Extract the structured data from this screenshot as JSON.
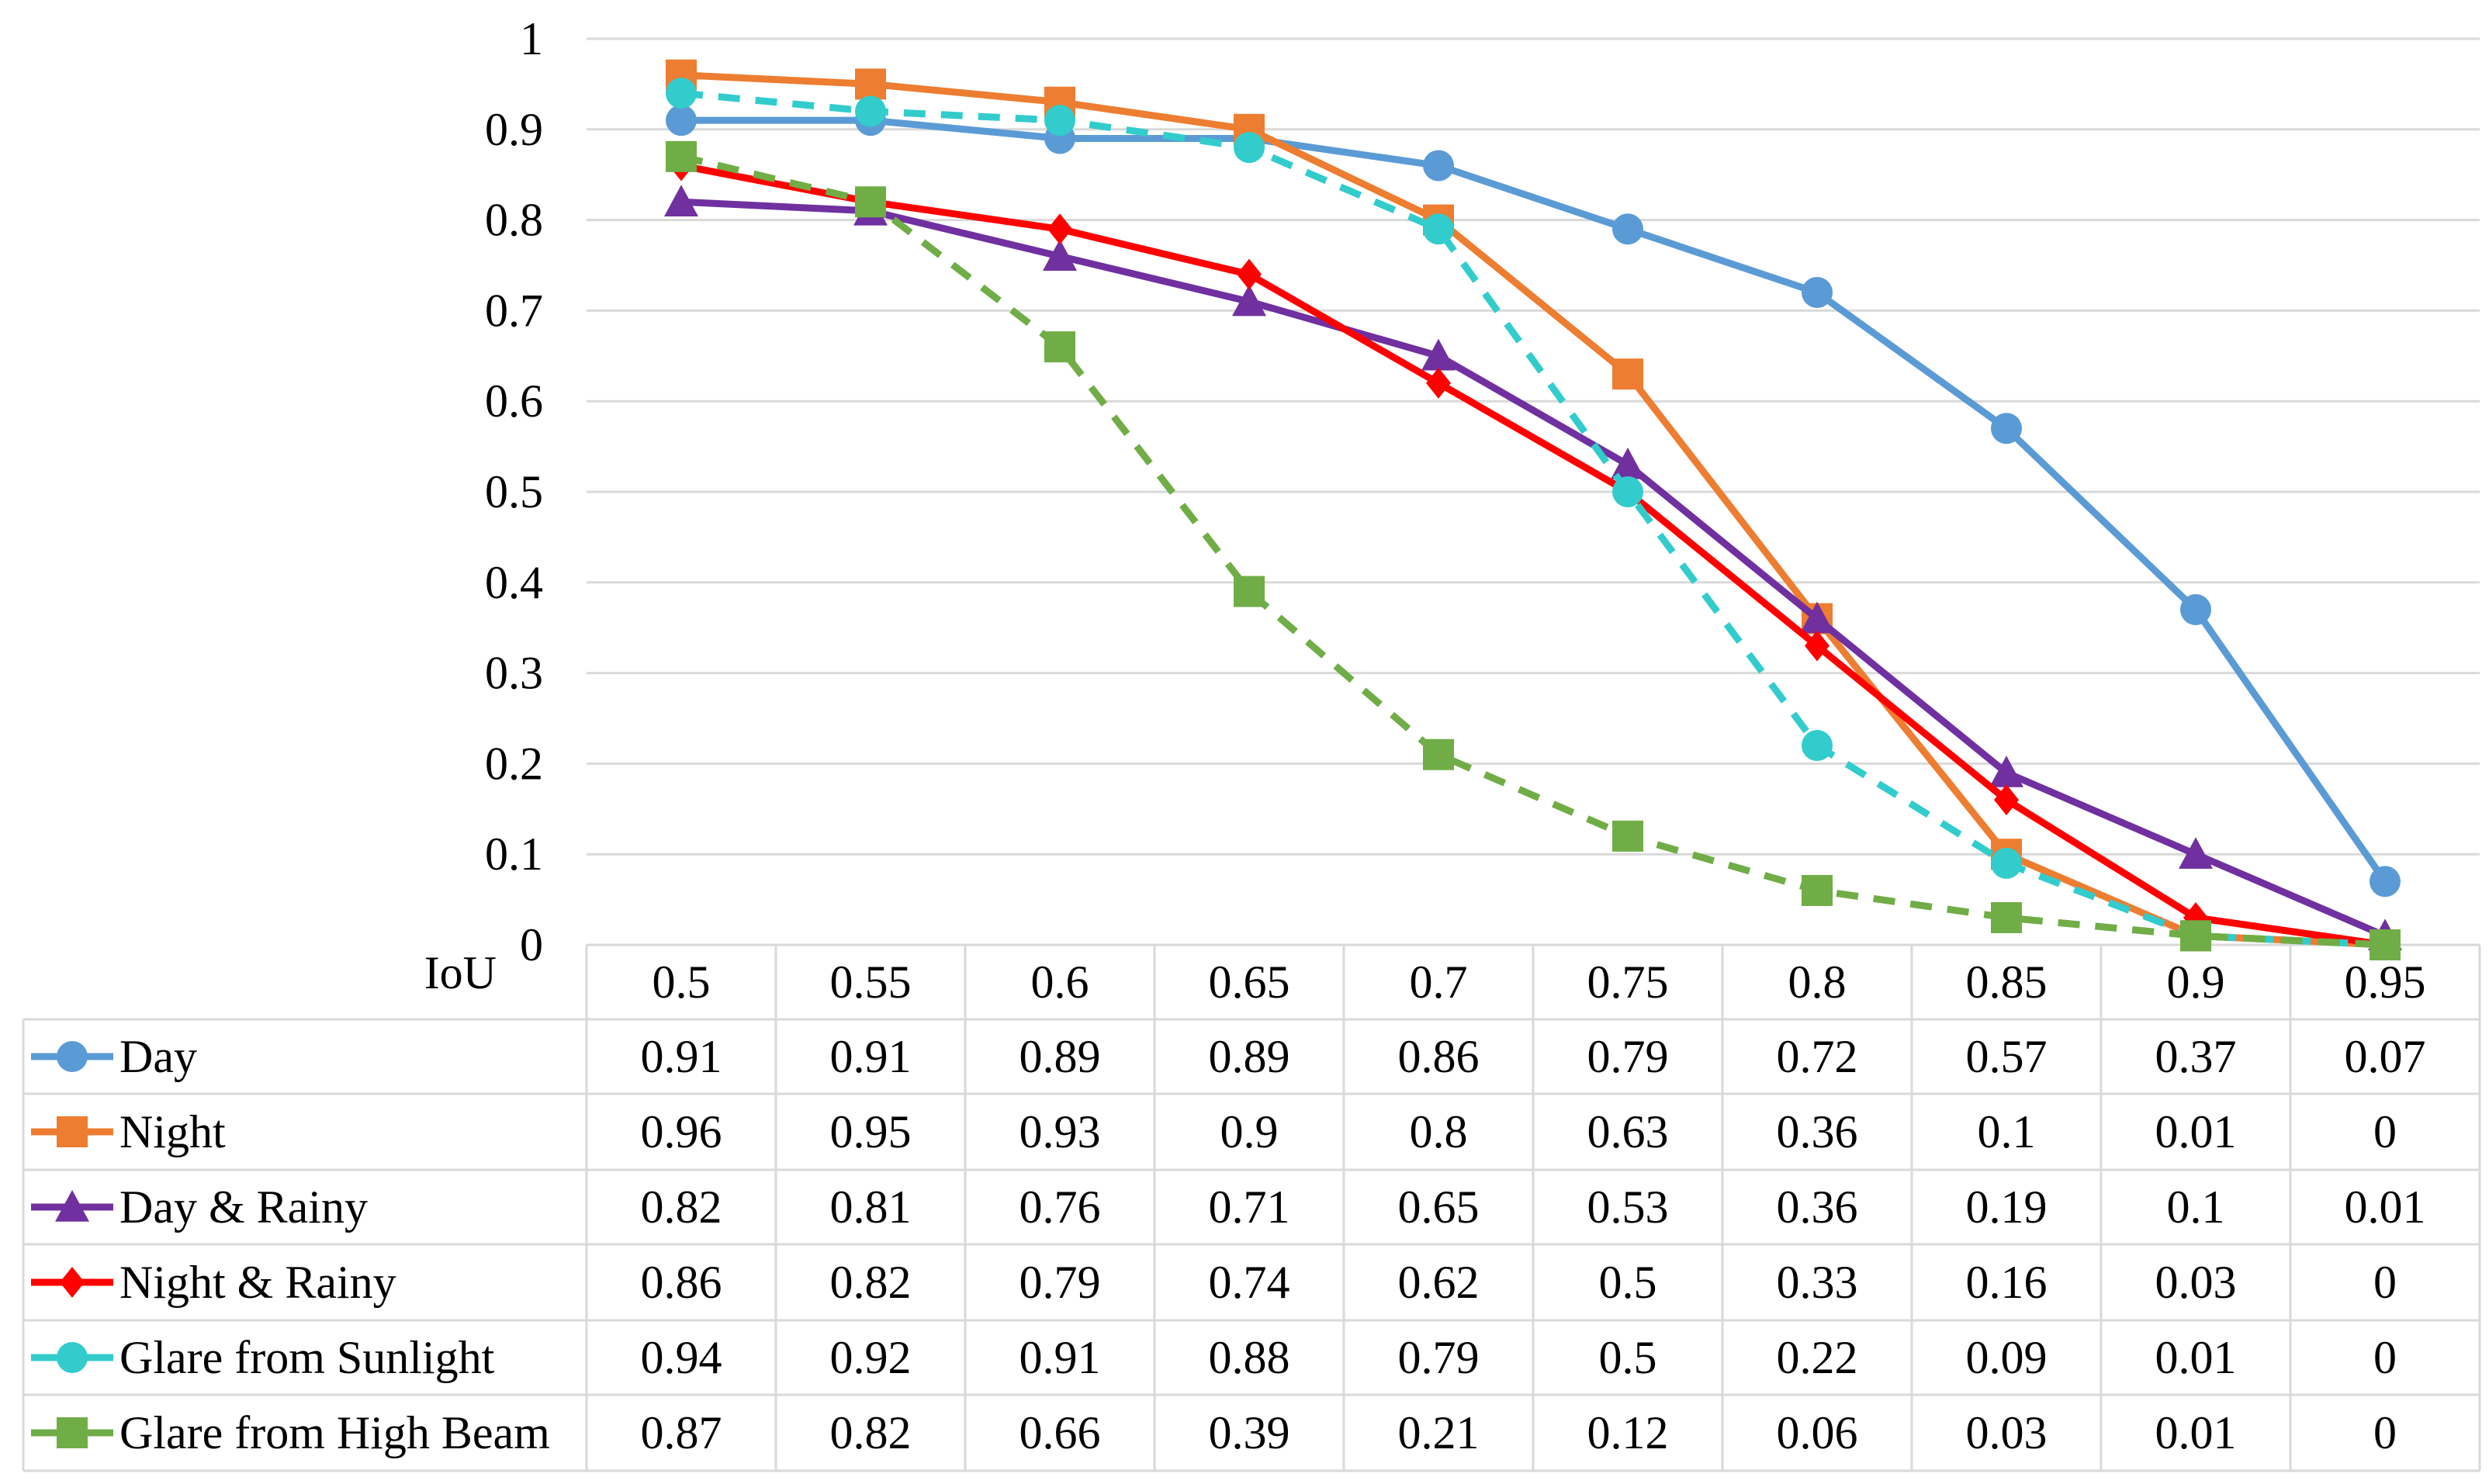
{
  "chart_data": {
    "type": "line",
    "title": "",
    "xlabel": "IoU",
    "ylabel": "",
    "x": [
      "0.5",
      "0.55",
      "0.6",
      "0.65",
      "0.7",
      "0.75",
      "0.8",
      "0.85",
      "0.9",
      "0.95"
    ],
    "ylim": [
      0,
      1
    ],
    "yticks": [
      "0",
      "0.1",
      "0.2",
      "0.3",
      "0.4",
      "0.5",
      "0.6",
      "0.7",
      "0.8",
      "0.9",
      "1"
    ],
    "grid": true,
    "legend_position": "data-table-left",
    "series": [
      {
        "name": "Day",
        "color": "#5b9bd5",
        "marker": "circle",
        "dashed": false,
        "values": [
          0.91,
          0.91,
          0.89,
          0.89,
          0.86,
          0.79,
          0.72,
          0.57,
          0.37,
          0.07
        ],
        "labels": [
          "0.91",
          "0.91",
          "0.89",
          "0.89",
          "0.86",
          "0.79",
          "0.72",
          "0.57",
          "0.37",
          "0.07"
        ]
      },
      {
        "name": "Night",
        "color": "#ed7d31",
        "marker": "square",
        "dashed": false,
        "values": [
          0.96,
          0.95,
          0.93,
          0.9,
          0.8,
          0.63,
          0.36,
          0.1,
          0.01,
          0
        ],
        "labels": [
          "0.96",
          "0.95",
          "0.93",
          "0.9",
          "0.8",
          "0.63",
          "0.36",
          "0.1",
          "0.01",
          "0"
        ]
      },
      {
        "name": "Day & Rainy",
        "color": "#7030a0",
        "marker": "triangle",
        "dashed": false,
        "values": [
          0.82,
          0.81,
          0.76,
          0.71,
          0.65,
          0.53,
          0.36,
          0.19,
          0.1,
          0.01
        ],
        "labels": [
          "0.82",
          "0.81",
          "0.76",
          "0.71",
          "0.65",
          "0.53",
          "0.36",
          "0.19",
          "0.1",
          "0.01"
        ]
      },
      {
        "name": "Night & Rainy",
        "color": "#ff0000",
        "marker": "diamond",
        "dashed": false,
        "values": [
          0.86,
          0.82,
          0.79,
          0.74,
          0.62,
          0.5,
          0.33,
          0.16,
          0.03,
          0
        ],
        "labels": [
          "0.86",
          "0.82",
          "0.79",
          "0.74",
          "0.62",
          "0.5",
          "0.33",
          "0.16",
          "0.03",
          "0"
        ]
      },
      {
        "name": "Glare from Sunlight",
        "color": "#33cccc",
        "marker": "circle",
        "dashed": true,
        "values": [
          0.94,
          0.92,
          0.91,
          0.88,
          0.79,
          0.5,
          0.22,
          0.09,
          0.01,
          0
        ],
        "labels": [
          "0.94",
          "0.92",
          "0.91",
          "0.88",
          "0.79",
          "0.5",
          "0.22",
          "0.09",
          "0.01",
          "0"
        ]
      },
      {
        "name": "Glare from High Beam",
        "color": "#70ad47",
        "marker": "square",
        "dashed": true,
        "values": [
          0.87,
          0.82,
          0.66,
          0.39,
          0.21,
          0.12,
          0.06,
          0.03,
          0.01,
          0
        ],
        "labels": [
          "0.87",
          "0.82",
          "0.66",
          "0.39",
          "0.21",
          "0.12",
          "0.06",
          "0.03",
          "0.01",
          "0"
        ]
      }
    ]
  }
}
